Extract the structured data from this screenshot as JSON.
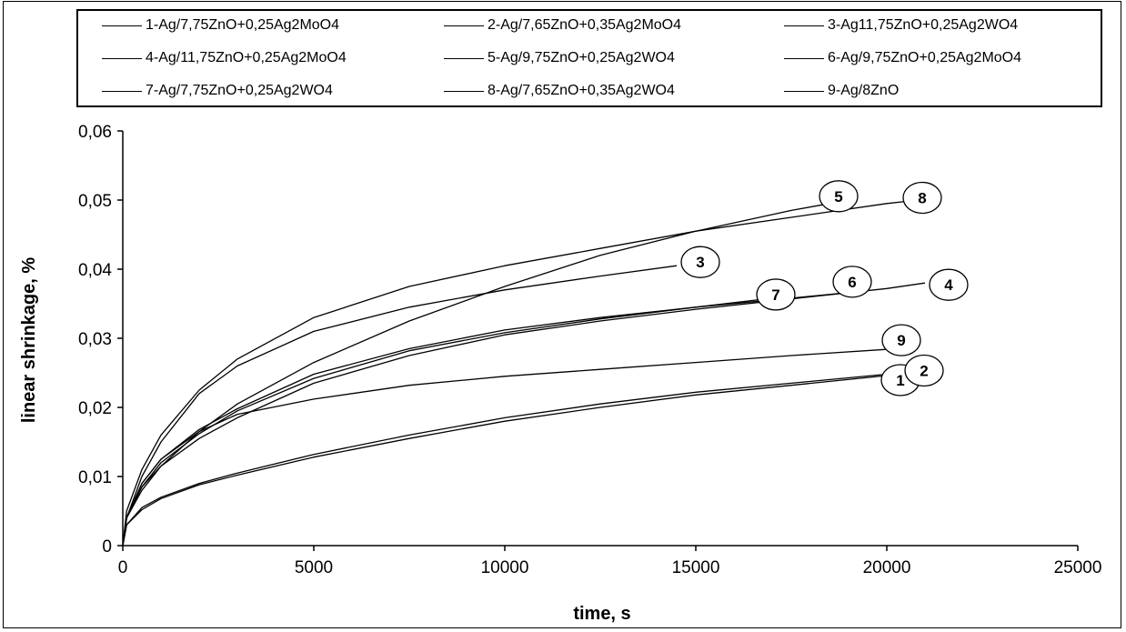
{
  "chart_data": {
    "type": "line",
    "xlabel": "time, s",
    "ylabel": "linear shrinkage, %",
    "xlim": [
      0,
      25000
    ],
    "ylim": [
      0,
      0.06
    ],
    "x_ticks": [
      "0",
      "5000",
      "10000",
      "15000",
      "20000",
      "25000"
    ],
    "y_ticks": [
      "0",
      "0,01",
      "0,02",
      "0,03",
      "0,04",
      "0,05",
      "0,06"
    ],
    "grid": false,
    "legend_position": "top",
    "line_color": "#000000",
    "series": [
      {
        "name": "1-Ag/7,75ZnO+0,25Ag2MoO4",
        "label": "1",
        "x": [
          0,
          100,
          500,
          1000,
          2000,
          3000,
          5000,
          7500,
          10000,
          12500,
          15000,
          17500,
          20000,
          20500
        ],
        "y": [
          0,
          0.003,
          0.0055,
          0.007,
          0.009,
          0.0105,
          0.0132,
          0.016,
          0.0185,
          0.0205,
          0.0222,
          0.0235,
          0.0248,
          0.025
        ]
      },
      {
        "name": "2-Ag/7,65ZnO+0,35Ag2MoO4",
        "label": "2",
        "x": [
          0,
          100,
          500,
          1000,
          2000,
          3000,
          5000,
          7500,
          10000,
          12500,
          15000,
          17500,
          20000,
          20500
        ],
        "y": [
          0,
          0.003,
          0.0052,
          0.0068,
          0.0088,
          0.0102,
          0.0128,
          0.0155,
          0.018,
          0.02,
          0.0218,
          0.0232,
          0.0246,
          0.0248
        ]
      },
      {
        "name": "3-Ag11,75ZnO+0,25Ag2WO4",
        "label": "3",
        "x": [
          0,
          100,
          500,
          1000,
          2000,
          3000,
          5000,
          7500,
          10000,
          12500,
          14500
        ],
        "y": [
          0,
          0.004,
          0.01,
          0.015,
          0.022,
          0.026,
          0.031,
          0.0345,
          0.037,
          0.039,
          0.0405
        ]
      },
      {
        "name": "4-Ag/11,75ZnO+0,25Ag2MoO4",
        "label": "4",
        "x": [
          0,
          100,
          500,
          1000,
          2000,
          3000,
          5000,
          7500,
          10000,
          12500,
          15000,
          17500,
          20000,
          21000
        ],
        "y": [
          0,
          0.004,
          0.0085,
          0.0115,
          0.0155,
          0.0185,
          0.0235,
          0.0275,
          0.0305,
          0.0325,
          0.0342,
          0.0357,
          0.0372,
          0.038
        ]
      },
      {
        "name": "5-Ag/9,75ZnO+0,25Ag2WO4",
        "label": "5",
        "x": [
          0,
          100,
          500,
          1000,
          2000,
          3000,
          5000,
          7500,
          10000,
          12500,
          15000,
          17500,
          18500
        ],
        "y": [
          0,
          0.004,
          0.008,
          0.0115,
          0.0165,
          0.0205,
          0.0265,
          0.0325,
          0.0375,
          0.042,
          0.0455,
          0.0485,
          0.0495
        ]
      },
      {
        "name": "6-Ag/9,75ZnO+0,25Ag2MoO4",
        "label": "6",
        "x": [
          0,
          100,
          500,
          1000,
          2000,
          3000,
          5000,
          7500,
          10000,
          12500,
          15000,
          17500,
          19000
        ],
        "y": [
          0,
          0.004,
          0.009,
          0.0125,
          0.0168,
          0.0198,
          0.0248,
          0.0285,
          0.0312,
          0.033,
          0.0345,
          0.0358,
          0.0366
        ]
      },
      {
        "name": "7-Ag/7,75ZnO+0,25Ag2WO4",
        "label": "7",
        "x": [
          0,
          100,
          500,
          1000,
          2000,
          3000,
          5000,
          7500,
          10000,
          12500,
          15000,
          17000
        ],
        "y": [
          0,
          0.004,
          0.0085,
          0.012,
          0.0162,
          0.0195,
          0.0242,
          0.0282,
          0.0308,
          0.0328,
          0.0345,
          0.0358
        ]
      },
      {
        "name": "8-Ag/7,65ZnO+0,35Ag2WO4",
        "label": "8",
        "x": [
          0,
          100,
          500,
          1000,
          2000,
          3000,
          5000,
          7500,
          10000,
          12500,
          15000,
          17500,
          20000,
          20500
        ],
        "y": [
          0,
          0.005,
          0.011,
          0.016,
          0.0225,
          0.027,
          0.033,
          0.0375,
          0.0405,
          0.043,
          0.0455,
          0.0475,
          0.0495,
          0.0498
        ]
      },
      {
        "name": "9-Ag/8ZnO",
        "label": "9",
        "x": [
          0,
          100,
          500,
          1000,
          2000,
          3000,
          5000,
          7500,
          10000,
          12500,
          15000,
          17500,
          20000
        ],
        "y": [
          0,
          0.004,
          0.009,
          0.0125,
          0.0165,
          0.019,
          0.0212,
          0.0232,
          0.0245,
          0.0255,
          0.0265,
          0.0275,
          0.0284
        ]
      }
    ]
  }
}
